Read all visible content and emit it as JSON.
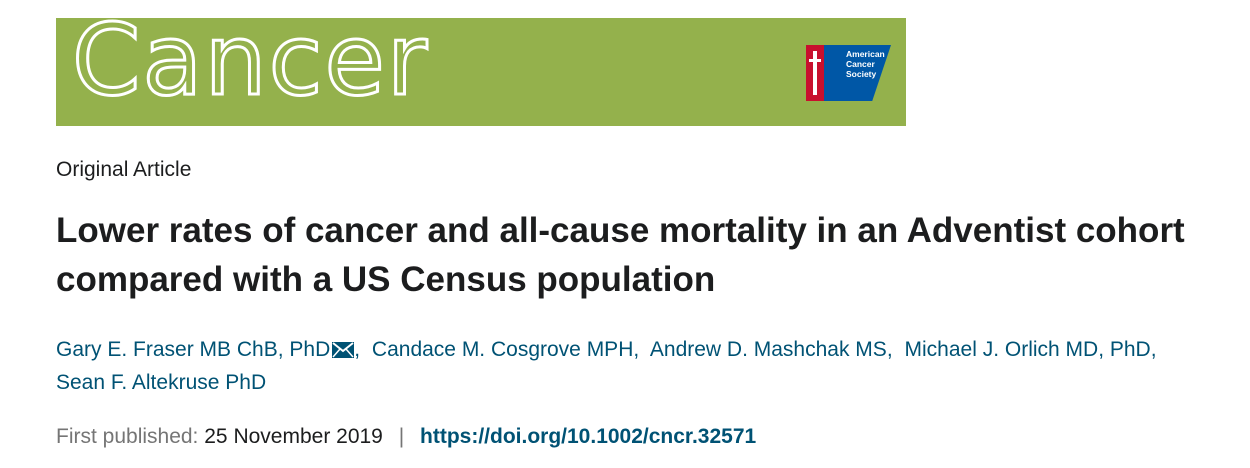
{
  "journal": {
    "title": "Cancer",
    "publisher_logo_text": "American\nCancer\nSociety",
    "banner_color": "#94b14c"
  },
  "article": {
    "type": "Original Article",
    "title": "Lower rates of cancer and all-cause mortality in an Adventist cohort compared with a US Census population",
    "authors": [
      {
        "name": "Gary E. Fraser MB ChB, PhD",
        "corresponding": true
      },
      {
        "name": "Candace M. Cosgrove MPH"
      },
      {
        "name": "Andrew D. Mashchak MS"
      },
      {
        "name": "Michael J. Orlich MD, PhD"
      },
      {
        "name": "Sean F. Altekruse PhD"
      }
    ],
    "first_published_label": "First published:",
    "first_published_date": "25 November 2019",
    "doi": "https://doi.org/10.1002/cncr.32571"
  },
  "colors": {
    "link": "#005274",
    "text": "#1c1d1e",
    "muted": "#757575"
  },
  "icons": {
    "corresponding_author": "envelope-icon"
  }
}
